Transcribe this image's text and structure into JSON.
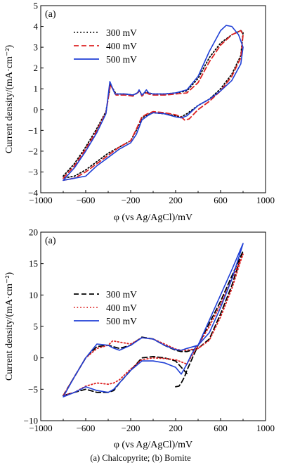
{
  "caption": "(a) Chalcopyrite; (b) Bornite",
  "chart_data": [
    {
      "type": "line",
      "panel_label": "(a)",
      "xlabel": "φ (vs Ag/AgCl)/mV",
      "ylabel": "Current density/(mA·cm⁻²)",
      "xlim": [
        -1000,
        1000
      ],
      "ylim": [
        -4,
        5
      ],
      "xticks": [
        -1000,
        -600,
        -200,
        200,
        600,
        1000
      ],
      "yticks": [
        -4,
        -3,
        -2,
        -1,
        0,
        1,
        2,
        3,
        4,
        5
      ],
      "grid": false,
      "legend_position": "top-left",
      "series": [
        {
          "name": "300 mV",
          "color": "#000000",
          "dash": "dotted",
          "x": [
            -800,
            -700,
            -600,
            -500,
            -420,
            -380,
            -330,
            -250,
            -180,
            -140,
            -120,
            -100,
            -80,
            -60,
            -40,
            0,
            100,
            200,
            300,
            400,
            500,
            600,
            700,
            780,
            800,
            780,
            700,
            600,
            500,
            400,
            300,
            250,
            200,
            100,
            0,
            -50,
            -100,
            -150,
            -200,
            -300,
            -400,
            -500,
            -600,
            -700,
            -800
          ],
          "y": [
            -3.2,
            -2.6,
            -1.8,
            -0.9,
            -0.1,
            1.2,
            0.75,
            0.75,
            0.7,
            0.8,
            0.9,
            0.7,
            0.8,
            0.85,
            0.8,
            0.75,
            0.75,
            0.8,
            0.9,
            1.5,
            2.5,
            3.2,
            3.6,
            3.8,
            3.7,
            2.6,
            1.7,
            1.0,
            0.5,
            0.2,
            -0.2,
            -0.35,
            -0.3,
            -0.2,
            -0.15,
            -0.25,
            -0.4,
            -1.0,
            -1.5,
            -1.8,
            -2.1,
            -2.5,
            -2.9,
            -3.2,
            -3.3
          ]
        },
        {
          "name": "400 mV",
          "color": "#dd2222",
          "dash": "dashed",
          "x": [
            -800,
            -700,
            -600,
            -500,
            -420,
            -380,
            -330,
            -250,
            -180,
            -140,
            -120,
            -100,
            -80,
            -60,
            -40,
            0,
            100,
            200,
            300,
            400,
            500,
            600,
            700,
            780,
            800,
            780,
            700,
            600,
            500,
            400,
            320,
            280,
            250,
            200,
            100,
            0,
            -50,
            -100,
            -150,
            -200,
            -300,
            -400,
            -500,
            -600,
            -700,
            -800
          ],
          "y": [
            -3.3,
            -2.7,
            -1.9,
            -1.0,
            -0.15,
            1.2,
            0.7,
            0.7,
            0.65,
            0.8,
            0.9,
            0.65,
            0.75,
            0.8,
            0.75,
            0.7,
            0.7,
            0.75,
            0.8,
            1.3,
            2.3,
            3.1,
            3.6,
            3.8,
            3.6,
            2.5,
            1.6,
            0.9,
            0.4,
            0.0,
            -0.45,
            -0.5,
            -0.35,
            -0.25,
            -0.15,
            -0.1,
            -0.2,
            -0.35,
            -0.95,
            -1.5,
            -1.8,
            -2.2,
            -2.6,
            -3.0,
            -3.3,
            -3.4
          ]
        },
        {
          "name": "500 mV",
          "color": "#1f3fd6",
          "dash": "solid",
          "x": [
            -800,
            -700,
            -600,
            -500,
            -420,
            -385,
            -340,
            -250,
            -180,
            -140,
            -125,
            -100,
            -80,
            -60,
            -40,
            0,
            100,
            200,
            300,
            400,
            500,
            600,
            650,
            700,
            760,
            800,
            780,
            700,
            600,
            500,
            400,
            300,
            250,
            200,
            100,
            0,
            -50,
            -100,
            -150,
            -200,
            -300,
            -400,
            -500,
            -600,
            -700,
            -800
          ],
          "y": [
            -3.4,
            -2.8,
            -2.0,
            -1.1,
            -0.2,
            1.35,
            0.75,
            0.75,
            0.7,
            0.8,
            0.95,
            0.7,
            0.8,
            0.95,
            0.8,
            0.75,
            0.75,
            0.8,
            0.95,
            1.6,
            2.8,
            3.8,
            4.05,
            4.0,
            3.6,
            3.0,
            2.2,
            1.4,
            0.9,
            0.5,
            0.2,
            -0.3,
            -0.4,
            -0.35,
            -0.2,
            -0.15,
            -0.3,
            -0.5,
            -1.2,
            -1.6,
            -1.9,
            -2.3,
            -2.7,
            -3.2,
            -3.3,
            -3.4
          ]
        }
      ]
    },
    {
      "type": "line",
      "panel_label": "(a)",
      "xlabel": "φ (vs Ag/AgCl)/mV",
      "ylabel": "Current density/(mA·cm⁻²)",
      "xlim": [
        -1000,
        1000
      ],
      "ylim": [
        -10,
        20
      ],
      "xticks": [
        -1000,
        -600,
        -200,
        200,
        600,
        1000
      ],
      "yticks": [
        -10,
        -5,
        0,
        5,
        10,
        15,
        20
      ],
      "grid": false,
      "legend_position": "center-left",
      "series": [
        {
          "name": "300 mV",
          "color": "#000000",
          "dash": "dashed",
          "x": [
            200,
            230,
            250,
            280,
            300,
            350,
            400,
            500,
            600,
            700,
            800,
            780,
            700,
            600,
            500,
            400,
            300,
            250,
            200,
            100,
            0,
            -100,
            -200,
            -300,
            -360,
            -400,
            -500,
            -600,
            -700,
            -800,
            -700,
            -600,
            -500,
            -400,
            -350,
            -300,
            -200,
            -100,
            0,
            100,
            200,
            300
          ],
          "y": [
            -4.6,
            -4.5,
            -4.0,
            -3.0,
            -2.0,
            0.0,
            2.0,
            5.5,
            9.0,
            13.0,
            17.0,
            16.0,
            11.5,
            7.0,
            3.0,
            1.5,
            1.0,
            1.0,
            1.2,
            2.0,
            3.0,
            3.3,
            2.0,
            1.5,
            1.8,
            2.0,
            1.8,
            0.0,
            -3.0,
            -6.0,
            -5.5,
            -5.0,
            -5.5,
            -5.5,
            -5.2,
            -4.0,
            -2.0,
            0.0,
            0.2,
            0.0,
            -0.5,
            -2.5
          ]
        },
        {
          "name": "400 mV",
          "color": "#dd2222",
          "dash": "dotted",
          "x": [
            300,
            350,
            400,
            500,
            600,
            700,
            800,
            780,
            700,
            600,
            500,
            400,
            300,
            250,
            200,
            100,
            0,
            -100,
            -200,
            -300,
            -360,
            -400,
            -500,
            -600,
            -700,
            -800,
            -700,
            -600,
            -500,
            -400,
            -350,
            -300,
            -200,
            -100,
            0,
            100,
            200,
            300
          ],
          "y": [
            -1.0,
            0.5,
            2.0,
            5.0,
            8.5,
            12.5,
            16.5,
            15.5,
            11.0,
            6.5,
            2.8,
            1.5,
            1.2,
            1.2,
            1.4,
            2.2,
            3.0,
            3.2,
            2.2,
            2.5,
            2.7,
            2.0,
            1.5,
            0.0,
            -3.0,
            -6.0,
            -5.5,
            -4.5,
            -4.0,
            -4.2,
            -4.0,
            -3.5,
            -1.8,
            -0.3,
            0.0,
            -0.1,
            -0.3,
            -1.0
          ]
        },
        {
          "name": "500 mV",
          "color": "#1f3fd6",
          "dash": "solid",
          "x": [
            400,
            450,
            500,
            600,
            700,
            800,
            780,
            700,
            600,
            500,
            400,
            300,
            250,
            200,
            100,
            0,
            -100,
            -200,
            -300,
            -360,
            -400,
            -500,
            -600,
            -700,
            -800,
            -700,
            -600,
            -500,
            -400,
            -350,
            -300,
            -200,
            -100,
            0,
            100,
            200,
            250,
            300,
            340,
            380,
            400
          ],
          "y": [
            2.0,
            4.0,
            6.0,
            10.0,
            14.0,
            18.2,
            17.0,
            12.5,
            8.0,
            4.0,
            2.0,
            1.5,
            1.2,
            1.3,
            2.0,
            3.0,
            3.2,
            2.0,
            1.2,
            1.6,
            2.0,
            2.2,
            0.0,
            -3.0,
            -6.2,
            -5.5,
            -4.6,
            -5.2,
            -5.5,
            -5.0,
            -4.0,
            -2.0,
            -0.5,
            -0.5,
            -0.8,
            -1.5,
            -2.6,
            -1.0,
            0.5,
            1.8,
            2.0
          ]
        }
      ]
    }
  ]
}
